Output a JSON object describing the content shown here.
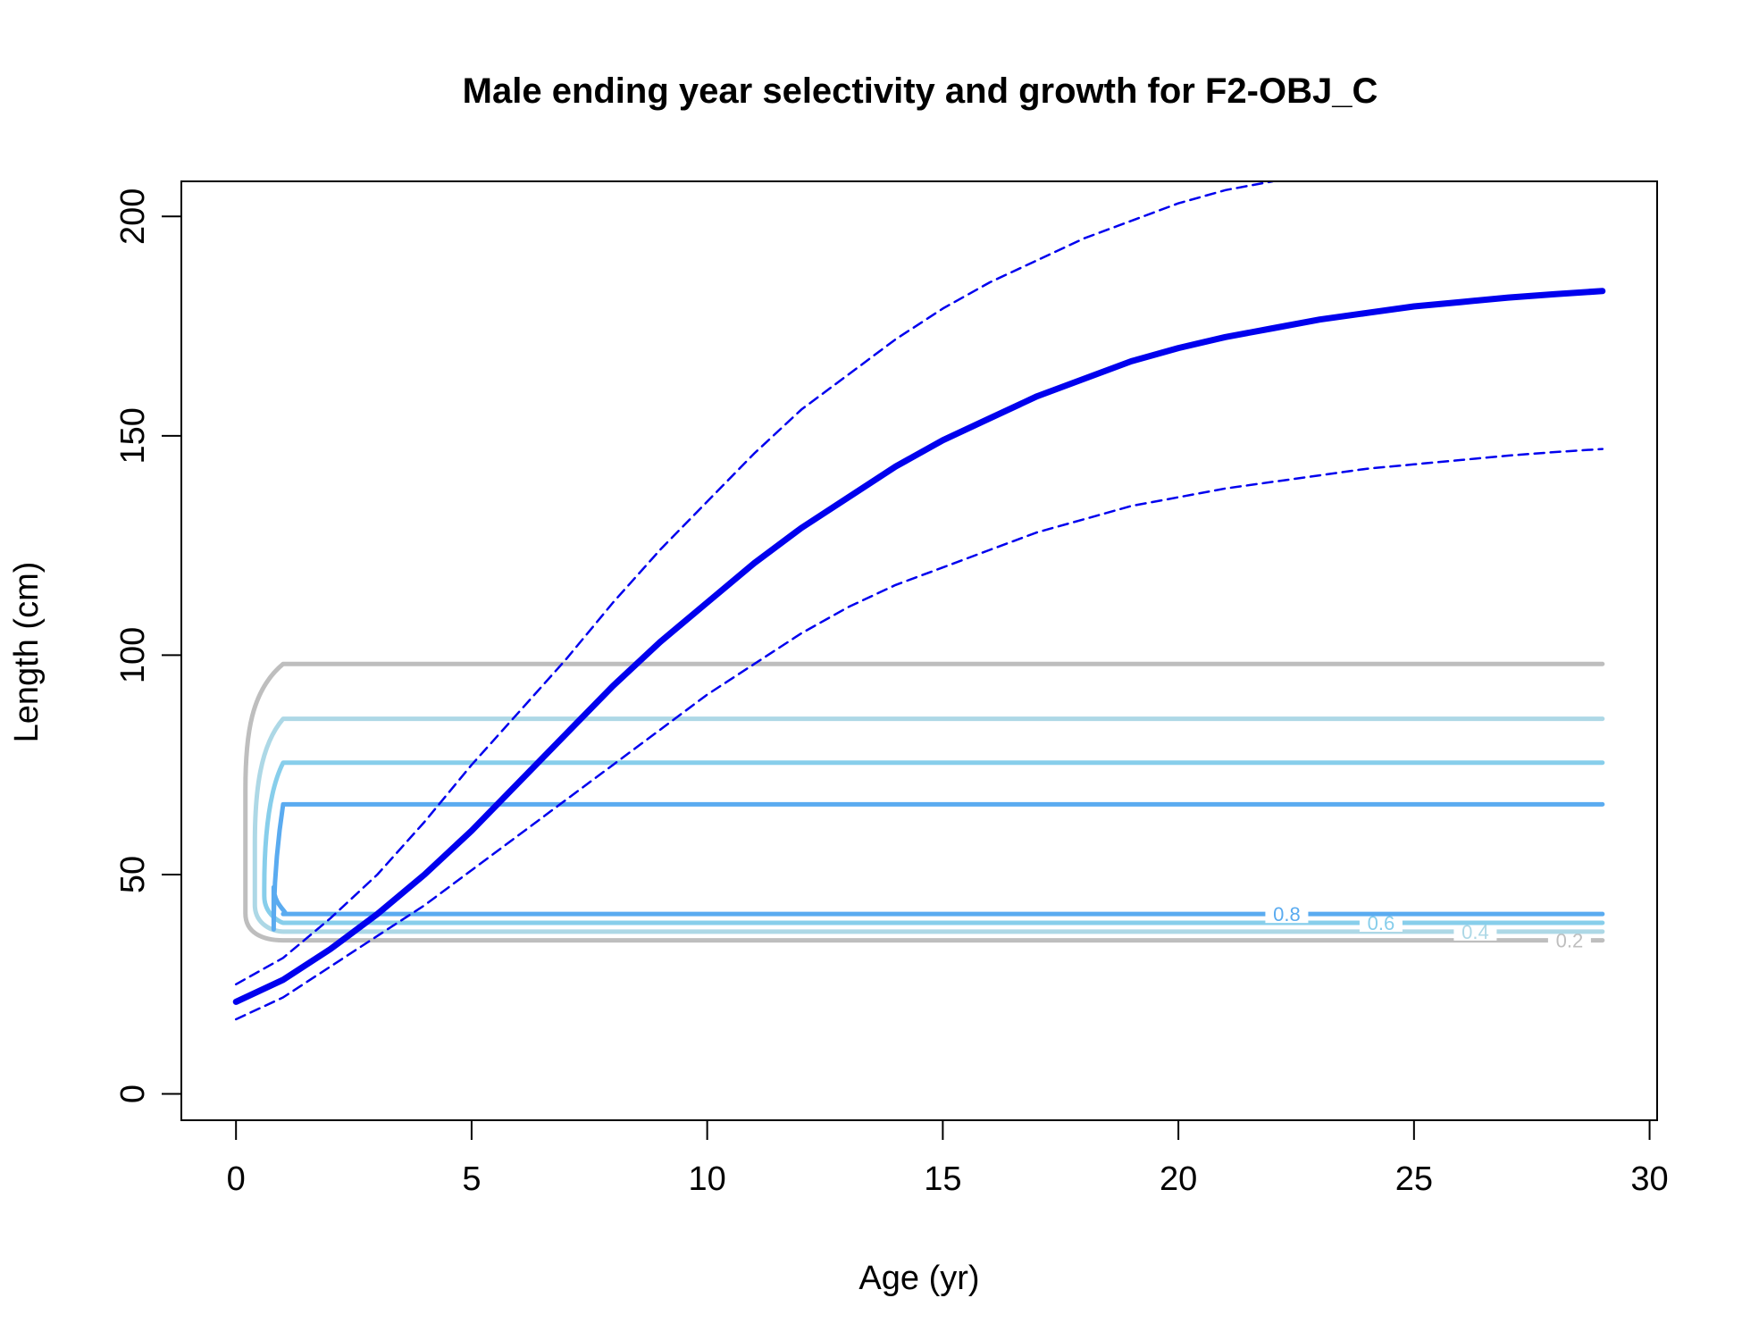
{
  "chart_data": {
    "type": "line",
    "title": "Male ending year selectivity and growth for F2-OBJ_C",
    "xlabel": "Age (yr)",
    "ylabel": "Length (cm)",
    "xlim": [
      -1.16,
      30.16
    ],
    "ylim": [
      -6,
      208
    ],
    "x_ticks": [
      0,
      5,
      10,
      15,
      20,
      25,
      30
    ],
    "y_ticks": [
      0,
      50,
      100,
      150,
      200
    ],
    "colors": {
      "growth": "#0000ee",
      "ci": "#0000ee",
      "contour_0.2": "#bebebe",
      "contour_0.4": "#add8e6",
      "contour_0.6": "#87ceeb",
      "contour_0.8": "#5aabf0"
    },
    "series": [
      {
        "role": "mean-growth",
        "style": "solid-thick",
        "x": [
          0,
          1,
          2,
          3,
          4,
          5,
          6,
          7,
          8,
          9,
          10,
          11,
          12,
          13,
          14,
          15,
          16,
          17,
          18,
          19,
          20,
          21,
          22,
          23,
          24,
          25,
          26,
          27,
          28,
          29
        ],
        "y": [
          21,
          26,
          33,
          41,
          50,
          60,
          71,
          82,
          93,
          103,
          112,
          121,
          129,
          136,
          143,
          149,
          154,
          159,
          163,
          167,
          170,
          172.5,
          174.5,
          176.5,
          178,
          179.5,
          180.5,
          181.5,
          182.3,
          183
        ]
      },
      {
        "role": "upper-ci",
        "style": "dashed",
        "x": [
          0,
          1,
          2,
          3,
          4,
          5,
          6,
          7,
          8,
          9,
          10,
          11,
          12,
          13,
          14,
          15,
          16,
          17,
          18,
          19,
          20,
          21,
          22
        ],
        "y": [
          25,
          31,
          40,
          50,
          62,
          75,
          87,
          99,
          112,
          124,
          135,
          146,
          156,
          164,
          172,
          179,
          185,
          190,
          195,
          199,
          203,
          206,
          208
        ]
      },
      {
        "role": "lower-ci",
        "style": "dashed",
        "x": [
          0,
          1,
          2,
          3,
          4,
          5,
          6,
          7,
          8,
          9,
          10,
          11,
          12,
          13,
          14,
          15,
          16,
          17,
          18,
          19,
          20,
          21,
          22,
          23,
          24,
          25,
          26,
          27,
          28,
          29
        ],
        "y": [
          17,
          22,
          29,
          36,
          43,
          51,
          59,
          67,
          75,
          83,
          91,
          98,
          105,
          111,
          116,
          120,
          124,
          128,
          131,
          134,
          136,
          138,
          139.5,
          141,
          142.5,
          143.5,
          144.5,
          145.5,
          146.3,
          147
        ]
      }
    ],
    "contours": [
      {
        "level": "0.2",
        "label": "0.2",
        "top": 98,
        "bottom": 35,
        "left": 0.2,
        "right": 29,
        "label_x": 28.3
      },
      {
        "level": "0.4",
        "label": "0.4",
        "top": 85.5,
        "bottom": 37,
        "left": 0.4,
        "right": 29,
        "label_x": 26.3
      },
      {
        "level": "0.6",
        "label": "0.6",
        "top": 75.5,
        "bottom": 39,
        "left": 0.6,
        "right": 29,
        "label_x": 24.3
      },
      {
        "level": "0.8",
        "label": "0.8",
        "top": 66,
        "bottom": 41,
        "left": 0.8,
        "right": 29,
        "label_x": 22.3
      }
    ]
  }
}
